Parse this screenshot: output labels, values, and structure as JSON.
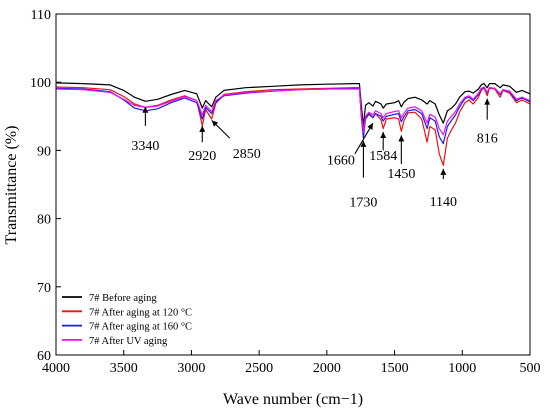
{
  "chart_data": {
    "type": "line",
    "xlabel": "Wave number (cm−1)",
    "ylabel": "Transmittance  (%)",
    "xlim": [
      4000,
      500
    ],
    "ylim": [
      60,
      110
    ],
    "x_reversed": true,
    "xticks": [
      4000,
      3500,
      3000,
      2500,
      2000,
      1500,
      1000,
      500
    ],
    "yticks": [
      60,
      70,
      80,
      90,
      100,
      110
    ],
    "grid": false,
    "legend_position": "bottom-left",
    "series": [
      {
        "name": "7#  Before aging",
        "color": "#000000",
        "points": [
          [
            4000,
            99.9
          ],
          [
            3800,
            99.8
          ],
          [
            3600,
            99.6
          ],
          [
            3500,
            98.8
          ],
          [
            3420,
            97.8
          ],
          [
            3340,
            97.2
          ],
          [
            3250,
            97.5
          ],
          [
            3150,
            98.2
          ],
          [
            3050,
            98.8
          ],
          [
            2960,
            98.3
          ],
          [
            2920,
            96.2
          ],
          [
            2895,
            97.3
          ],
          [
            2850,
            96.4
          ],
          [
            2820,
            97.8
          ],
          [
            2760,
            98.8
          ],
          [
            2600,
            99.2
          ],
          [
            2400,
            99.4
          ],
          [
            2200,
            99.6
          ],
          [
            2000,
            99.7
          ],
          [
            1800,
            99.8
          ],
          [
            1760,
            99.8
          ],
          [
            1745,
            96.5
          ],
          [
            1730,
            93.6
          ],
          [
            1715,
            96.6
          ],
          [
            1690,
            97.0
          ],
          [
            1660,
            96.5
          ],
          [
            1640,
            97.2
          ],
          [
            1600,
            96.8
          ],
          [
            1584,
            96.2
          ],
          [
            1560,
            96.8
          ],
          [
            1500,
            97.0
          ],
          [
            1470,
            97.3
          ],
          [
            1450,
            96.4
          ],
          [
            1430,
            97.1
          ],
          [
            1400,
            97.6
          ],
          [
            1350,
            97.8
          ],
          [
            1300,
            97.4
          ],
          [
            1260,
            96.8
          ],
          [
            1240,
            97.3
          ],
          [
            1200,
            96.8
          ],
          [
            1170,
            95.2
          ],
          [
            1140,
            94.0
          ],
          [
            1110,
            95.8
          ],
          [
            1080,
            96.2
          ],
          [
            1050,
            96.8
          ],
          [
            1020,
            97.8
          ],
          [
            980,
            98.6
          ],
          [
            950,
            98.7
          ],
          [
            920,
            98.4
          ],
          [
            880,
            99.0
          ],
          [
            860,
            99.6
          ],
          [
            840,
            99.8
          ],
          [
            816,
            99.2
          ],
          [
            800,
            99.8
          ],
          [
            760,
            99.8
          ],
          [
            720,
            99.2
          ],
          [
            700,
            99.6
          ],
          [
            650,
            99.4
          ],
          [
            600,
            98.5
          ],
          [
            560,
            98.8
          ],
          [
            500,
            98.3
          ]
        ]
      },
      {
        "name": "7#  After aging at 120 °C",
        "color": "#ee1111",
        "points": [
          [
            4000,
            99.3
          ],
          [
            3800,
            99.2
          ],
          [
            3600,
            98.9
          ],
          [
            3500,
            97.9
          ],
          [
            3420,
            96.8
          ],
          [
            3340,
            96.3
          ],
          [
            3250,
            96.6
          ],
          [
            3150,
            97.4
          ],
          [
            3050,
            98.0
          ],
          [
            2960,
            97.3
          ],
          [
            2920,
            93.6
          ],
          [
            2895,
            96.0
          ],
          [
            2850,
            94.6
          ],
          [
            2820,
            96.9
          ],
          [
            2760,
            98.2
          ],
          [
            2600,
            98.6
          ],
          [
            2400,
            98.9
          ],
          [
            2200,
            99.0
          ],
          [
            2000,
            99.1
          ],
          [
            1800,
            99.2
          ],
          [
            1760,
            99.2
          ],
          [
            1745,
            95.2
          ],
          [
            1730,
            92.7
          ],
          [
            1715,
            94.8
          ],
          [
            1690,
            95.5
          ],
          [
            1660,
            94.8
          ],
          [
            1640,
            95.4
          ],
          [
            1600,
            94.5
          ],
          [
            1584,
            93.2
          ],
          [
            1560,
            94.6
          ],
          [
            1500,
            94.8
          ],
          [
            1470,
            94.6
          ],
          [
            1450,
            92.8
          ],
          [
            1430,
            94.4
          ],
          [
            1400,
            95.5
          ],
          [
            1350,
            95.6
          ],
          [
            1300,
            94.6
          ],
          [
            1260,
            91.2
          ],
          [
            1240,
            93.5
          ],
          [
            1200,
            93.0
          ],
          [
            1170,
            89.5
          ],
          [
            1140,
            87.8
          ],
          [
            1110,
            91.8
          ],
          [
            1080,
            93.0
          ],
          [
            1050,
            94.0
          ],
          [
            1020,
            95.6
          ],
          [
            980,
            97.0
          ],
          [
            950,
            97.4
          ],
          [
            920,
            96.8
          ],
          [
            880,
            97.8
          ],
          [
            860,
            98.8
          ],
          [
            840,
            99.2
          ],
          [
            816,
            98.0
          ],
          [
            800,
            99.1
          ],
          [
            760,
            99.0
          ],
          [
            720,
            97.8
          ],
          [
            700,
            98.8
          ],
          [
            650,
            98.4
          ],
          [
            600,
            97.0
          ],
          [
            560,
            97.4
          ],
          [
            500,
            96.8
          ]
        ]
      },
      {
        "name": "7#  After aging at 160 °C",
        "color": "#1a1aee",
        "points": [
          [
            4000,
            99.1
          ],
          [
            3800,
            99.0
          ],
          [
            3600,
            98.6
          ],
          [
            3500,
            97.4
          ],
          [
            3420,
            96.2
          ],
          [
            3340,
            95.8
          ],
          [
            3250,
            96.1
          ],
          [
            3150,
            97.0
          ],
          [
            3050,
            97.7
          ],
          [
            2960,
            97.0
          ],
          [
            2920,
            94.6
          ],
          [
            2895,
            96.3
          ],
          [
            2850,
            95.4
          ],
          [
            2820,
            97.1
          ],
          [
            2760,
            98.0
          ],
          [
            2600,
            98.4
          ],
          [
            2400,
            98.7
          ],
          [
            2200,
            98.9
          ],
          [
            2000,
            99.0
          ],
          [
            1800,
            99.1
          ],
          [
            1760,
            99.1
          ],
          [
            1745,
            94.8
          ],
          [
            1730,
            91.8
          ],
          [
            1715,
            94.6
          ],
          [
            1690,
            95.3
          ],
          [
            1660,
            94.8
          ],
          [
            1640,
            95.4
          ],
          [
            1600,
            95.0
          ],
          [
            1584,
            94.3
          ],
          [
            1560,
            95.0
          ],
          [
            1500,
            95.3
          ],
          [
            1470,
            95.4
          ],
          [
            1450,
            94.2
          ],
          [
            1430,
            95.0
          ],
          [
            1400,
            95.8
          ],
          [
            1350,
            96.0
          ],
          [
            1300,
            95.4
          ],
          [
            1260,
            93.2
          ],
          [
            1240,
            94.8
          ],
          [
            1200,
            94.3
          ],
          [
            1170,
            92.0
          ],
          [
            1140,
            91.0
          ],
          [
            1110,
            93.5
          ],
          [
            1080,
            94.4
          ],
          [
            1050,
            95.2
          ],
          [
            1020,
            96.4
          ],
          [
            980,
            97.6
          ],
          [
            950,
            97.8
          ],
          [
            920,
            97.3
          ],
          [
            880,
            98.2
          ],
          [
            860,
            99.0
          ],
          [
            840,
            99.3
          ],
          [
            816,
            98.4
          ],
          [
            800,
            99.2
          ],
          [
            760,
            99.1
          ],
          [
            720,
            98.2
          ],
          [
            700,
            98.9
          ],
          [
            650,
            98.6
          ],
          [
            600,
            97.3
          ],
          [
            560,
            97.7
          ],
          [
            500,
            97.1
          ]
        ]
      },
      {
        "name": "7#  After UV aging",
        "color": "#ee11ee",
        "points": [
          [
            4000,
            99.0
          ],
          [
            3800,
            98.9
          ],
          [
            3600,
            98.5
          ],
          [
            3500,
            97.5
          ],
          [
            3420,
            96.6
          ],
          [
            3340,
            96.3
          ],
          [
            3250,
            96.5
          ],
          [
            3150,
            97.2
          ],
          [
            3050,
            97.9
          ],
          [
            2960,
            97.3
          ],
          [
            2920,
            95.2
          ],
          [
            2895,
            96.6
          ],
          [
            2850,
            95.7
          ],
          [
            2820,
            97.3
          ],
          [
            2760,
            98.1
          ],
          [
            2600,
            98.5
          ],
          [
            2400,
            98.7
          ],
          [
            2200,
            98.9
          ],
          [
            2000,
            99.0
          ],
          [
            1800,
            99.0
          ],
          [
            1760,
            99.0
          ],
          [
            1745,
            95.2
          ],
          [
            1730,
            92.6
          ],
          [
            1715,
            95.0
          ],
          [
            1690,
            95.6
          ],
          [
            1660,
            95.2
          ],
          [
            1640,
            95.8
          ],
          [
            1600,
            95.4
          ],
          [
            1584,
            94.8
          ],
          [
            1560,
            95.4
          ],
          [
            1500,
            95.7
          ],
          [
            1470,
            95.8
          ],
          [
            1450,
            94.8
          ],
          [
            1430,
            95.5
          ],
          [
            1400,
            96.2
          ],
          [
            1350,
            96.4
          ],
          [
            1300,
            95.8
          ],
          [
            1260,
            94.0
          ],
          [
            1240,
            95.3
          ],
          [
            1200,
            94.9
          ],
          [
            1170,
            93.2
          ],
          [
            1140,
            92.3
          ],
          [
            1110,
            94.3
          ],
          [
            1080,
            95.0
          ],
          [
            1050,
            95.7
          ],
          [
            1020,
            96.8
          ],
          [
            980,
            97.8
          ],
          [
            950,
            98.0
          ],
          [
            920,
            97.5
          ],
          [
            880,
            98.4
          ],
          [
            860,
            99.1
          ],
          [
            840,
            99.3
          ],
          [
            816,
            98.5
          ],
          [
            800,
            99.2
          ],
          [
            760,
            99.1
          ],
          [
            720,
            98.3
          ],
          [
            700,
            98.9
          ],
          [
            650,
            98.7
          ],
          [
            600,
            97.5
          ],
          [
            560,
            97.8
          ],
          [
            500,
            97.3
          ]
        ]
      }
    ],
    "annotations": [
      {
        "text": "3340",
        "x": 3340,
        "arrow_from": 93.6,
        "arrow_to": 96.4,
        "label_y": 90.8
      },
      {
        "text": "2920",
        "x": 2920,
        "arrow_from": 91.2,
        "arrow_to": 93.6,
        "label_y": 89.3
      },
      {
        "text": "2850",
        "x": 2850,
        "arrow_from": 91.8,
        "arrow_to": 94.4,
        "label_y": 89.6,
        "label_dx": 35,
        "diagonal": true
      },
      {
        "text": "1660",
        "x": 1660,
        "arrow_from": 89.5,
        "arrow_to": 94.0,
        "label_y": 88.7,
        "label_dx": -32,
        "diagonal": true
      },
      {
        "text": "1584",
        "x": 1584,
        "arrow_from": 90.0,
        "arrow_to": 92.7,
        "label_y": 89.3
      },
      {
        "text": "1450",
        "x": 1450,
        "arrow_from": 88.0,
        "arrow_to": 92.2,
        "label_y": 86.7
      },
      {
        "text": "1730",
        "x": 1730,
        "arrow_from": 86.0,
        "arrow_to": 91.4,
        "label_y": 82.5
      },
      {
        "text": "1140",
        "x": 1140,
        "arrow_from": 85.8,
        "arrow_to": 87.3,
        "label_y": 82.6
      },
      {
        "text": "816",
        "x": 816,
        "arrow_from": 94.5,
        "arrow_to": 97.6,
        "label_y": 91.9
      }
    ]
  }
}
